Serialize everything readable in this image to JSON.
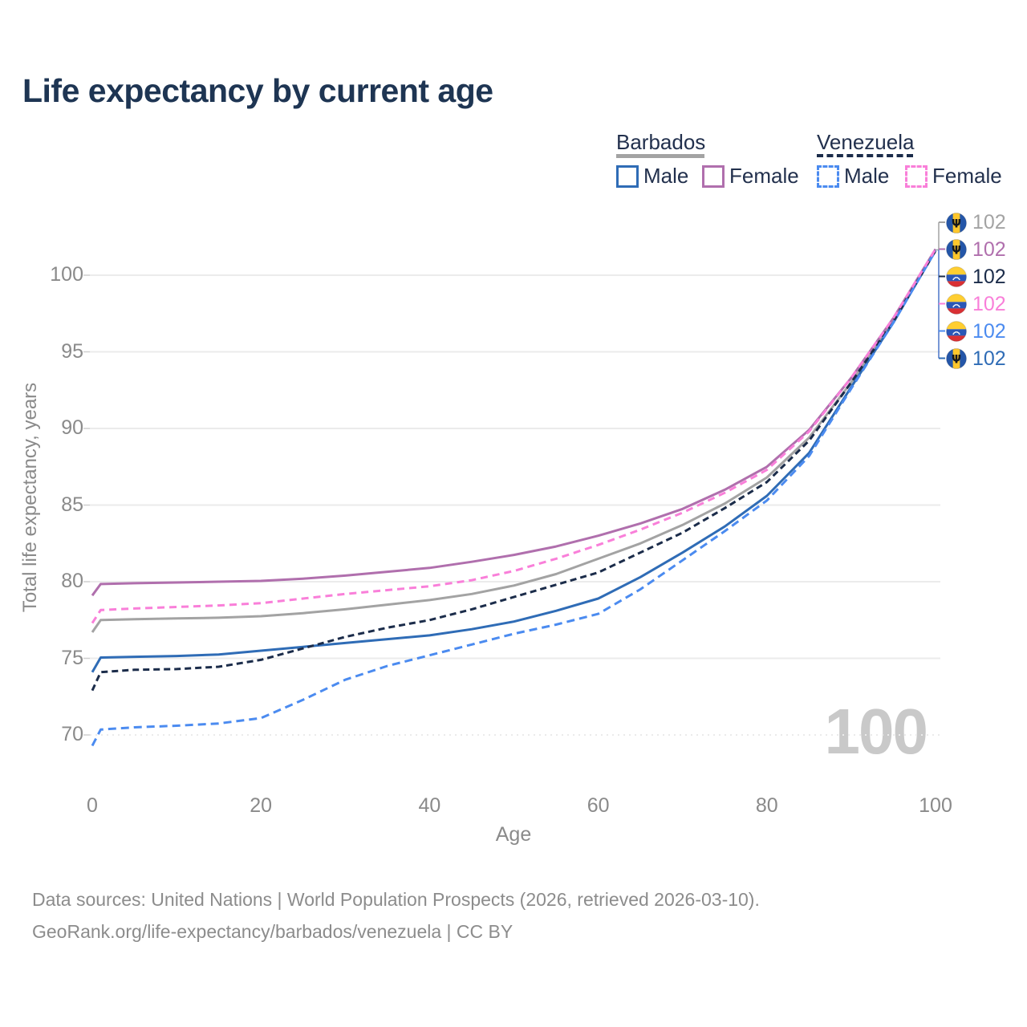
{
  "title": "Life expectancy by current age",
  "legend": {
    "groups": [
      {
        "label": "Barbados",
        "line_style": "solid",
        "underline_color": "#a3a3a3",
        "items": [
          {
            "label": "Male",
            "color": "#2f6cb6"
          },
          {
            "label": "Female",
            "color": "#b06fad"
          }
        ]
      },
      {
        "label": "Venezuela",
        "line_style": "dashed",
        "underline_color": "#1b2c4a",
        "items": [
          {
            "label": "Male",
            "color": "#4b8bf0"
          },
          {
            "label": "Female",
            "color": "#f97fd9"
          }
        ]
      }
    ]
  },
  "colors": {
    "title": "#1e3553",
    "axis_text": "#8a8a8a",
    "gridline": "#ebebeb",
    "tick_mark": "#cfcfcf",
    "watermark": "#c9c9c9",
    "footer_text": "#8c8c8c",
    "legend_text": "#22304d"
  },
  "chart_data": {
    "type": "line",
    "title": "Life expectancy by current age",
    "xlabel": "Age",
    "ylabel": "Total life expectancy, years",
    "xlim": [
      0,
      100
    ],
    "ylim": [
      68.5,
      102.5
    ],
    "xticks": [
      0,
      20,
      40,
      60,
      80,
      100
    ],
    "yticks": [
      70,
      75,
      80,
      85,
      90,
      95,
      100
    ],
    "grid": "horizontal",
    "x": [
      0,
      1,
      5,
      10,
      15,
      20,
      25,
      30,
      35,
      40,
      45,
      50,
      55,
      60,
      65,
      70,
      75,
      80,
      85,
      90,
      95,
      100
    ],
    "series": [
      {
        "name": "Barbados (both sexes)",
        "color": "#a3a3a3",
        "dash": false,
        "dash_pattern": "",
        "values": [
          76.7,
          77.5,
          77.55,
          77.6,
          77.65,
          77.75,
          77.95,
          78.2,
          78.5,
          78.8,
          79.2,
          79.75,
          80.5,
          81.5,
          82.5,
          83.7,
          85.1,
          86.8,
          89.4,
          93.0,
          97.0,
          101.6
        ]
      },
      {
        "name": "Barbados Female",
        "color": "#b06fad",
        "dash": false,
        "dash_pattern": "",
        "values": [
          79.1,
          79.85,
          79.9,
          79.95,
          80.0,
          80.05,
          80.2,
          80.4,
          80.65,
          80.9,
          81.3,
          81.75,
          82.3,
          83.0,
          83.8,
          84.75,
          86.0,
          87.5,
          89.9,
          93.3,
          97.2,
          101.7
        ]
      },
      {
        "name": "Barbados Male",
        "color": "#2f6cb6",
        "dash": false,
        "dash_pattern": "",
        "values": [
          74.1,
          75.05,
          75.1,
          75.15,
          75.25,
          75.5,
          75.75,
          76.0,
          76.25,
          76.5,
          76.9,
          77.4,
          78.1,
          78.9,
          80.3,
          81.9,
          83.6,
          85.6,
          88.4,
          92.7,
          96.9,
          101.6
        ]
      },
      {
        "name": "Venezuela (both sexes)",
        "color": "#1b2c4a",
        "dash": true,
        "dash_pattern": "8 5",
        "values": [
          72.9,
          74.1,
          74.25,
          74.3,
          74.45,
          74.9,
          75.65,
          76.4,
          77.0,
          77.5,
          78.2,
          79.0,
          79.8,
          80.6,
          81.9,
          83.2,
          84.8,
          86.5,
          89.2,
          93.0,
          97.0,
          101.6
        ]
      },
      {
        "name": "Venezuela Male",
        "color": "#4b8bf0",
        "dash": true,
        "dash_pattern": "10 6",
        "values": [
          69.3,
          70.35,
          70.5,
          70.6,
          70.75,
          71.1,
          72.3,
          73.6,
          74.5,
          75.2,
          75.9,
          76.6,
          77.2,
          77.9,
          79.5,
          81.4,
          83.3,
          85.3,
          88.2,
          92.6,
          96.9,
          101.6
        ]
      },
      {
        "name": "Venezuela Female",
        "color": "#f97fd9",
        "dash": true,
        "dash_pattern": "9 6",
        "values": [
          77.3,
          78.15,
          78.25,
          78.35,
          78.45,
          78.6,
          78.9,
          79.2,
          79.45,
          79.7,
          80.1,
          80.7,
          81.5,
          82.4,
          83.4,
          84.5,
          85.8,
          87.3,
          89.8,
          93.3,
          97.2,
          101.7
        ]
      }
    ],
    "end_labels": [
      {
        "flag": "barbados",
        "label": "102",
        "color": "#a3a3a3"
      },
      {
        "flag": "barbados",
        "label": "102",
        "color": "#b06fad"
      },
      {
        "flag": "venezuela",
        "label": "102",
        "color": "#1b2c4a"
      },
      {
        "flag": "venezuela",
        "label": "102",
        "color": "#f97fd9"
      },
      {
        "flag": "venezuela",
        "label": "102",
        "color": "#4b8bf0"
      },
      {
        "flag": "barbados",
        "label": "102",
        "color": "#2f6cb6"
      }
    ]
  },
  "watermark": "100",
  "footer": {
    "line1": "Data sources: United Nations | World Population Prospects (2026, retrieved 2026-03-10).",
    "line2": "GeoRank.org/life-expectancy/barbados/venezuela | CC BY"
  }
}
